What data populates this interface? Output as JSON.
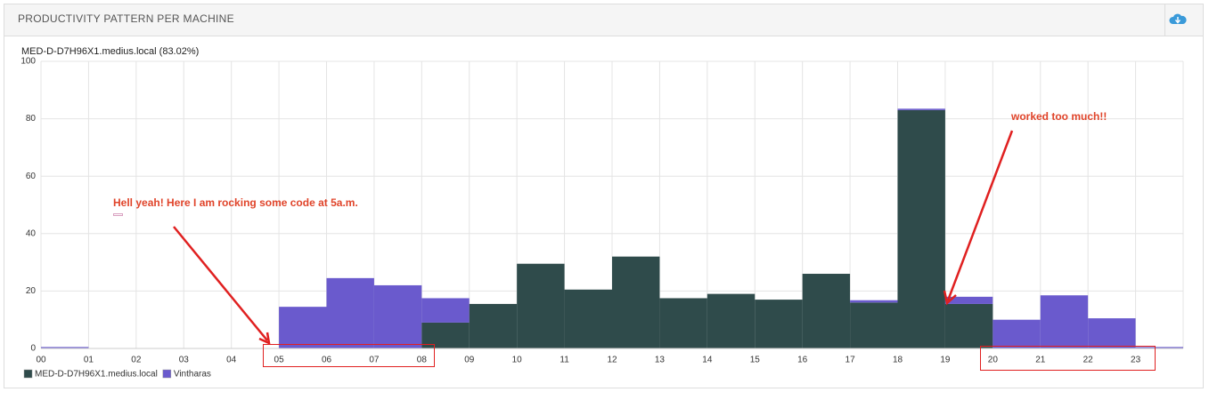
{
  "header": {
    "title": "PRODUCTIVITY PATTERN PER MACHINE"
  },
  "chart_data": {
    "type": "bar",
    "stacked": true,
    "title": "MED-D-D7H96X1.medius.local (83.02%)",
    "categories": [
      "00",
      "01",
      "02",
      "03",
      "04",
      "05",
      "06",
      "07",
      "08",
      "09",
      "10",
      "11",
      "12",
      "13",
      "14",
      "15",
      "16",
      "17",
      "18",
      "19",
      "20",
      "21",
      "22",
      "23"
    ],
    "series": [
      {
        "name": "MED-D-D7H96X1.medius.local",
        "color": "#2f4b4b",
        "values": [
          0,
          0,
          0,
          0,
          0,
          0,
          0,
          0,
          9,
          15.5,
          29.5,
          20.5,
          32,
          17.5,
          19,
          17,
          26,
          16,
          83,
          15.5,
          0,
          0,
          0,
          0
        ]
      },
      {
        "name": "Vintharas",
        "color": "#6a5acd",
        "values": [
          0.5,
          0,
          0,
          0,
          0,
          14.5,
          24.5,
          22,
          8.5,
          0,
          0,
          0,
          0,
          0,
          0,
          0,
          0,
          0.8,
          0.5,
          2.5,
          10,
          18.5,
          10.5,
          0.5
        ]
      }
    ],
    "ylim": [
      0,
      100
    ],
    "yticks": [
      0,
      20,
      40,
      60,
      80,
      100
    ],
    "grid": true,
    "annotations": [
      "Hell yeah! Here I am rocking some code at 5a.m.",
      "worked too much!!"
    ]
  }
}
